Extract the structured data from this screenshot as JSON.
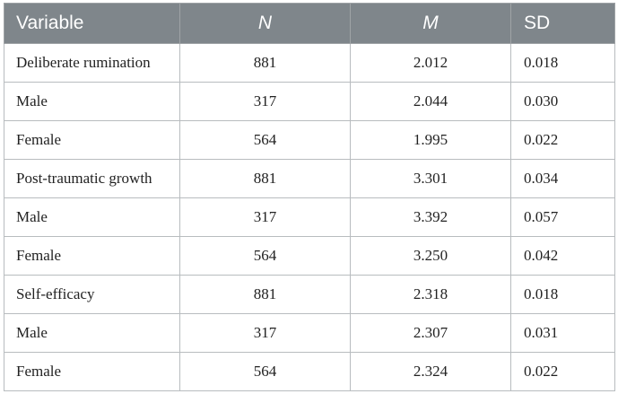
{
  "table": {
    "headers": {
      "variable": "Variable",
      "n": "N",
      "m": "M",
      "sd": "SD"
    },
    "rows": [
      {
        "variable": "Deliberate rumination",
        "n": "881",
        "m": "2.012",
        "sd": "0.018"
      },
      {
        "variable": "Male",
        "n": "317",
        "m": "2.044",
        "sd": "0.030"
      },
      {
        "variable": "Female",
        "n": "564",
        "m": "1.995",
        "sd": "0.022"
      },
      {
        "variable": "Post-traumatic growth",
        "n": "881",
        "m": "3.301",
        "sd": "0.034"
      },
      {
        "variable": "Male",
        "n": "317",
        "m": "3.392",
        "sd": "0.057"
      },
      {
        "variable": "Female",
        "n": "564",
        "m": "3.250",
        "sd": "0.042"
      },
      {
        "variable": "Self-efficacy",
        "n": "881",
        "m": "2.318",
        "sd": "0.018"
      },
      {
        "variable": "Male",
        "n": "317",
        "m": "2.307",
        "sd": "0.031"
      },
      {
        "variable": "Female",
        "n": "564",
        "m": "2.324",
        "sd": "0.022"
      }
    ]
  },
  "colors": {
    "header_background": "#7f868b",
    "header_text": "#ffffff",
    "border": "#9fa3a6"
  }
}
